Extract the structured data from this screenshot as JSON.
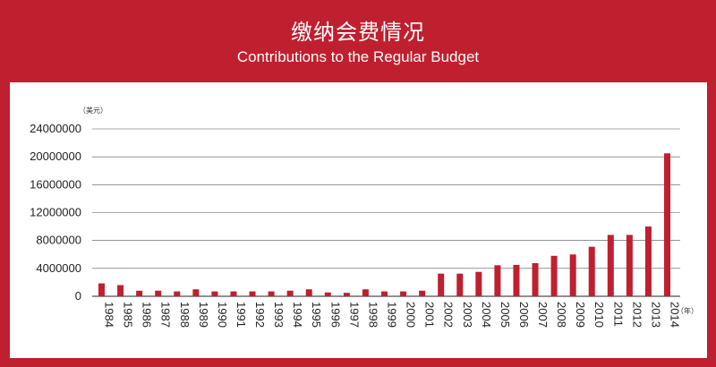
{
  "header": {
    "title_zh": "缴纳会费情况",
    "title_en": "Contributions to the Regular Budget"
  },
  "colors": {
    "background": "#c01f2f",
    "bar": "#c01f2f",
    "panel": "#ffffff",
    "grid": "#555555"
  },
  "chart_data": {
    "type": "bar",
    "title": "Contributions to the Regular Budget",
    "y_unit_label": "（美元）",
    "x_unit_label": "（年）",
    "ylim": [
      0,
      24000000
    ],
    "yticks": [
      "0",
      "4000000",
      "8000000",
      "12000000",
      "16000000",
      "20000000",
      "24000000"
    ],
    "grid": true,
    "categories": [
      "1984",
      "1985",
      "1986",
      "1987",
      "1988",
      "1989",
      "1990",
      "1991",
      "1992",
      "1993",
      "1994",
      "1995",
      "1996",
      "1997",
      "1998",
      "1999",
      "2000",
      "2001",
      "2002",
      "2003",
      "2004",
      "2005",
      "2006",
      "2007",
      "2008",
      "2009",
      "2010",
      "2011",
      "2012",
      "2013",
      "2014"
    ],
    "values": [
      1850000,
      1600000,
      800000,
      800000,
      700000,
      1000000,
      700000,
      700000,
      700000,
      700000,
      800000,
      1000000,
      550000,
      500000,
      1000000,
      700000,
      700000,
      800000,
      3250000,
      3250000,
      3500000,
      4450000,
      4500000,
      4750000,
      5800000,
      6000000,
      7100000,
      8800000,
      8800000,
      10000000,
      20500000
    ]
  }
}
